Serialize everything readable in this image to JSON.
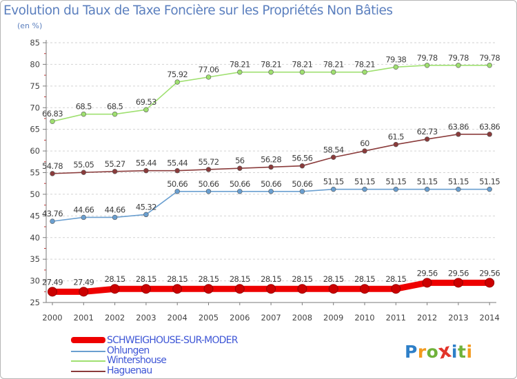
{
  "title": "Evolution du Taux de Taxe Foncière sur les Propriétés Non Bâties",
  "unit_label": "(en %)",
  "logo": {
    "text": "Proxiti",
    "letter_colors": [
      "#2e7fc8",
      "#f39a1e",
      "#6fb23a",
      "#e2342a",
      "#2e7fc8",
      "#6fb23a",
      "#f39a1e"
    ]
  },
  "chart_data": {
    "type": "line",
    "x": [
      "2000",
      "2001",
      "2002",
      "2003",
      "2004",
      "2005",
      "2006",
      "2007",
      "2008",
      "2009",
      "2010",
      "2011",
      "2012",
      "2013",
      "2014"
    ],
    "ylim": [
      25,
      85
    ],
    "yticks": [
      25,
      30,
      35,
      40,
      45,
      50,
      55,
      60,
      65,
      70,
      75,
      80,
      85
    ],
    "grid": "horizontal dashed",
    "series": [
      {
        "name": "SCHWEIGHOUSE-SUR-MODER",
        "color": "#ee0000",
        "values": [
          27.49,
          27.49,
          28.15,
          28.15,
          28.15,
          28.15,
          28.15,
          28.15,
          28.15,
          28.15,
          28.15,
          28.15,
          29.56,
          29.56,
          29.56
        ],
        "labels": [
          "27.49",
          "27.49",
          "28.15",
          "28.15",
          "28.15",
          "28.15",
          "28.15",
          "28.15",
          "28.15",
          "28.15",
          "28.15",
          "28.15",
          "29.56",
          "29.56",
          "29.56"
        ]
      },
      {
        "name": "Ohlungen",
        "color": "#6a9fd0",
        "values": [
          43.76,
          44.66,
          44.66,
          45.32,
          50.66,
          50.66,
          50.66,
          50.66,
          50.66,
          51.15,
          51.15,
          51.15,
          51.15,
          51.15,
          51.15
        ],
        "labels": [
          "43.76",
          "44.66",
          "44.66",
          "45.32",
          "50.66",
          "50.66",
          "50.66",
          "50.66",
          "50.66",
          "51.15",
          "51.15",
          "51.15",
          "51.15",
          "51.15",
          "51.15"
        ]
      },
      {
        "name": "Wintershouse",
        "color": "#9fe070",
        "values": [
          66.83,
          68.5,
          68.5,
          69.53,
          75.92,
          77.06,
          78.21,
          78.21,
          78.21,
          78.21,
          78.21,
          79.38,
          79.78,
          79.78,
          79.78
        ],
        "labels": [
          "66.83",
          "68.5",
          "68.5",
          "69.53",
          "75.92",
          "77.06",
          "78.21",
          "78.21",
          "78.21",
          "78.21",
          "78.21",
          "79.38",
          "79.78",
          "79.78",
          "79.78"
        ]
      },
      {
        "name": "Haguenau",
        "color": "#8a3b3b",
        "values": [
          54.78,
          55.05,
          55.27,
          55.44,
          55.44,
          55.72,
          56,
          56.28,
          56.56,
          58.54,
          60,
          61.5,
          62.73,
          63.86,
          63.86
        ],
        "labels": [
          "54.78",
          "55.05",
          "55.27",
          "55.44",
          "55.44",
          "55.72",
          "56",
          "56.28",
          "56.56",
          "58.54",
          "60",
          "61.5",
          "62.73",
          "63.86",
          "63.86"
        ]
      }
    ]
  }
}
